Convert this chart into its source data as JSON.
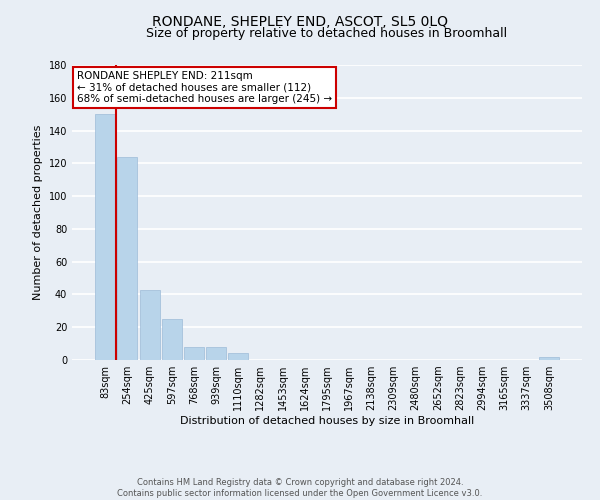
{
  "title": "RONDANE, SHEPLEY END, ASCOT, SL5 0LQ",
  "subtitle": "Size of property relative to detached houses in Broomhall",
  "xlabel": "Distribution of detached houses by size in Broomhall",
  "ylabel": "Number of detached properties",
  "bar_labels": [
    "83sqm",
    "254sqm",
    "425sqm",
    "597sqm",
    "768sqm",
    "939sqm",
    "1110sqm",
    "1282sqm",
    "1453sqm",
    "1624sqm",
    "1795sqm",
    "1967sqm",
    "2138sqm",
    "2309sqm",
    "2480sqm",
    "2652sqm",
    "2823sqm",
    "2994sqm",
    "3165sqm",
    "3337sqm",
    "3508sqm"
  ],
  "bar_heights": [
    150,
    124,
    43,
    25,
    8,
    8,
    4,
    0,
    0,
    0,
    0,
    0,
    0,
    0,
    0,
    0,
    0,
    0,
    0,
    0,
    2
  ],
  "bar_color": "#b8d4ea",
  "marker_line_color": "#cc0000",
  "annotation_title": "RONDANE SHEPLEY END: 211sqm",
  "annotation_line1": "← 31% of detached houses are smaller (112)",
  "annotation_line2": "68% of semi-detached houses are larger (245) →",
  "annotation_box_facecolor": "#ffffff",
  "annotation_box_edgecolor": "#cc0000",
  "ylim": [
    0,
    180
  ],
  "yticks": [
    0,
    20,
    40,
    60,
    80,
    100,
    120,
    140,
    160,
    180
  ],
  "footer_line1": "Contains HM Land Registry data © Crown copyright and database right 2024.",
  "footer_line2": "Contains public sector information licensed under the Open Government Licence v3.0.",
  "bg_color": "#e8eef5",
  "grid_color": "#ffffff",
  "title_fontsize": 10,
  "subtitle_fontsize": 9,
  "ylabel_fontsize": 8,
  "xlabel_fontsize": 8,
  "tick_fontsize": 7,
  "annotation_fontsize": 7.5,
  "footer_fontsize": 6
}
